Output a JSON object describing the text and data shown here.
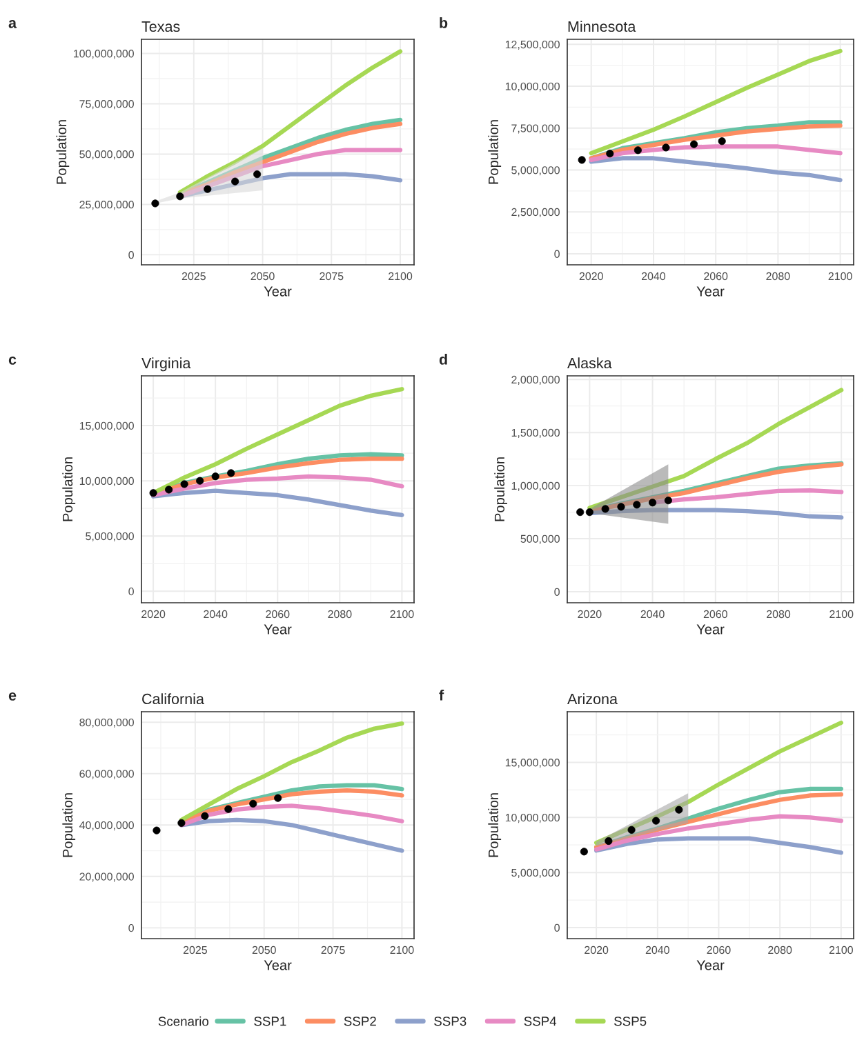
{
  "chart_data": [
    {
      "type": "line",
      "title": "Texas",
      "xlabel": "Year",
      "ylabel": "Population",
      "annotations": [
        "a"
      ],
      "grid": true,
      "legend": "bottom",
      "legend_title": "Scenario",
      "xlim": [
        2006,
        2105
      ],
      "ylim": [
        -5000000,
        107000000
      ],
      "xticks": [
        2025,
        2050,
        2075,
        2100
      ],
      "yticks": [
        {
          "value": 0,
          "label": "0"
        },
        {
          "value": 25000000,
          "label": "25,000,000"
        },
        {
          "value": 50000000,
          "label": "50,000,000"
        },
        {
          "value": 75000000,
          "label": "75,000,000"
        },
        {
          "value": 100000000,
          "label": "100,000,000"
        }
      ],
      "x": [
        2020,
        2030,
        2040,
        2050,
        2060,
        2070,
        2080,
        2090,
        2100
      ],
      "series": [
        {
          "type": "line",
          "color": "#d9d9d9",
          "x": [
            2011,
            2020,
            2050
          ],
          "values": [
            null,
            null,
            null
          ],
          "lower": [
            25500000.0,
            28000000.0,
            32000000.0
          ],
          "upper": [
            26500000.0,
            31000000.0,
            53000000.0
          ]
        },
        {
          "name": "SSP1",
          "color": "#66c2a5",
          "values": [
            30000000.0,
            36000000.0,
            42000000.0,
            48000000.0,
            53000000.0,
            58000000.0,
            62000000.0,
            65000000.0,
            67000000.0
          ]
        },
        {
          "name": "SSP2",
          "color": "#fc8d62",
          "values": [
            30000000.0,
            35000000.0,
            41000000.0,
            46000000.0,
            51000000.0,
            56000000.0,
            60000000.0,
            63000000.0,
            65000000.0
          ]
        },
        {
          "name": "SSP3",
          "color": "#8da0cb",
          "values": [
            29000000.0,
            32000000.0,
            35000000.0,
            38000000.0,
            40000000.0,
            40000000.0,
            40000000.0,
            39000000.0,
            37000000.0
          ]
        },
        {
          "name": "SSP4",
          "color": "#e78ac3",
          "values": [
            29000000.0,
            34000000.0,
            39000000.0,
            44000000.0,
            47000000.0,
            50000000.0,
            52000000.0,
            52000000.0,
            52000000.0
          ]
        },
        {
          "name": "SSP5",
          "color": "#a6d854",
          "values": [
            31000000.0,
            39000000.0,
            46000000.0,
            54000000.0,
            64000000.0,
            74000000.0,
            84000000.0,
            93000000.0,
            101000000.0
          ]
        },
        {
          "type": "scatter",
          "color": "#000000",
          "marker": "circle",
          "x": [
            2011,
            2020,
            2030,
            2040,
            2048
          ],
          "values": [
            25500000.0,
            29000000.0,
            32600000.0,
            36400000.0,
            40000000.0
          ]
        }
      ]
    },
    {
      "type": "line",
      "title": "Minnesota",
      "xlabel": "Year",
      "ylabel": "Population",
      "annotations": [
        "b"
      ],
      "grid": true,
      "xlim": [
        2012.3,
        2104.3
      ],
      "ylim": [
        -660000,
        12800000
      ],
      "xticks": [
        2020,
        2040,
        2060,
        2080,
        2100
      ],
      "yticks": [
        {
          "value": 0,
          "label": "0"
        },
        {
          "value": 2500000,
          "label": "2,500,000"
        },
        {
          "value": 5000000,
          "label": "5,000,000"
        },
        {
          "value": 7500000,
          "label": "7,500,000"
        },
        {
          "value": 10000000,
          "label": "10,000,000"
        },
        {
          "value": 12500000,
          "label": "12,500,000"
        }
      ],
      "x": [
        2020,
        2030,
        2040,
        2050,
        2060,
        2070,
        2080,
        2090,
        2100
      ],
      "series": [
        {
          "name": "SSP1",
          "color": "#66c2a5",
          "values": [
            5700000.0,
            6300000.0,
            6600000.0,
            6900000.0,
            7250000.0,
            7500000.0,
            7650000.0,
            7850000.0,
            7850000.0
          ]
        },
        {
          "name": "SSP2",
          "color": "#fc8d62",
          "values": [
            5700000.0,
            6200000.0,
            6500000.0,
            6800000.0,
            7050000.0,
            7300000.0,
            7450000.0,
            7600000.0,
            7650000.0
          ]
        },
        {
          "name": "SSP3",
          "color": "#8da0cb",
          "values": [
            5500000.0,
            5700000.0,
            5700000.0,
            5500000.0,
            5300000.0,
            5100000.0,
            4850000.0,
            4700000.0,
            4400000.0
          ]
        },
        {
          "name": "SSP4",
          "color": "#e78ac3",
          "values": [
            5600000.0,
            6000000.0,
            6200000.0,
            6350000.0,
            6400000.0,
            6400000.0,
            6400000.0,
            6200000.0,
            6000000.0
          ]
        },
        {
          "name": "SSP5",
          "color": "#a6d854",
          "values": [
            6000000.0,
            6700000.0,
            7400000.0,
            8200000.0,
            9050000.0,
            9900000.0,
            10700000.0,
            11500000.0,
            12100000.0
          ]
        },
        {
          "type": "scatter",
          "color": "#000000",
          "marker": "circle",
          "x": [
            2017,
            2026,
            2035,
            2044,
            2053,
            2062
          ],
          "values": [
            5600000.0,
            5980000.0,
            6180000.0,
            6340000.0,
            6540000.0,
            6720000.0
          ]
        }
      ]
    },
    {
      "type": "line",
      "title": "Virginia",
      "xlabel": "Year",
      "ylabel": "Population",
      "annotations": [
        "c"
      ],
      "grid": true,
      "xlim": [
        2016.2,
        2103.9
      ],
      "ylim": [
        -1040000,
        19500000
      ],
      "xticks": [
        2020,
        2040,
        2060,
        2080,
        2100
      ],
      "yticks": [
        {
          "value": 0,
          "label": "0"
        },
        {
          "value": 5000000,
          "label": "5,000,000"
        },
        {
          "value": 10000000,
          "label": "10,000,000"
        },
        {
          "value": 15000000,
          "label": "15,000,000"
        }
      ],
      "x": [
        2020,
        2030,
        2040,
        2050,
        2060,
        2070,
        2080,
        2090,
        2100
      ],
      "series": [
        {
          "name": "SSP1",
          "color": "#66c2a5",
          "values": [
            8800000.0,
            9800000.0,
            10400000.0,
            10900000.0,
            11500000.0,
            12000000.0,
            12300000.0,
            12400000.0,
            12300000.0
          ]
        },
        {
          "name": "SSP2",
          "color": "#fc8d62",
          "values": [
            8800000.0,
            9700000.0,
            10300000.0,
            10700000.0,
            11200000.0,
            11600000.0,
            11900000.0,
            12000000.0,
            12000000.0
          ]
        },
        {
          "name": "SSP3",
          "color": "#8da0cb",
          "values": [
            8600000.0,
            8900000.0,
            9100000.0,
            8900000.0,
            8700000.0,
            8300000.0,
            7800000.0,
            7300000.0,
            6900000.0
          ]
        },
        {
          "name": "SSP4",
          "color": "#e78ac3",
          "values": [
            8700000.0,
            9300000.0,
            9800000.0,
            10100000.0,
            10200000.0,
            10400000.0,
            10300000.0,
            10100000.0,
            9500000.0
          ]
        },
        {
          "name": "SSP5",
          "color": "#a6d854",
          "values": [
            8900000.0,
            10300000.0,
            11500000.0,
            12900000.0,
            14200000.0,
            15500000.0,
            16800000.0,
            17700000.0,
            18300000.0
          ]
        },
        {
          "type": "scatter",
          "color": "#000000",
          "marker": "circle",
          "x": [
            2020,
            2025,
            2030,
            2035,
            2040,
            2045
          ],
          "values": [
            8900000.0,
            9200000.0,
            9700000.0,
            10000000.0,
            10400000.0,
            10700000.0
          ]
        }
      ]
    },
    {
      "type": "line",
      "title": "Alaska",
      "xlabel": "Year",
      "ylabel": "Population",
      "annotations": [
        "d"
      ],
      "grid": true,
      "xlim": [
        2012.9,
        2103.9
      ],
      "ylim": [
        -104000,
        2034000
      ],
      "xticks": [
        2020,
        2040,
        2060,
        2080,
        2100
      ],
      "yticks": [
        {
          "value": 0,
          "label": "0"
        },
        {
          "value": 500000,
          "label": "500,000"
        },
        {
          "value": 1000000,
          "label": "1,000,000"
        },
        {
          "value": 1500000,
          "label": "1,500,000"
        },
        {
          "value": 2000000,
          "label": "2,000,000"
        }
      ],
      "x": [
        2020,
        2030,
        2040,
        2050,
        2060,
        2070,
        2080,
        2090,
        2100
      ],
      "series": [
        {
          "name": "SSP1",
          "color": "#66c2a5",
          "values": [
            760000,
            830000,
            890000,
            950000,
            1020000,
            1090000,
            1160000,
            1190000,
            1210000
          ]
        },
        {
          "name": "SSP2",
          "color": "#fc8d62",
          "values": [
            760000,
            820000,
            880000,
            930000,
            1000000,
            1070000,
            1130000,
            1170000,
            1200000
          ]
        },
        {
          "name": "SSP3",
          "color": "#8da0cb",
          "values": [
            740000,
            760000,
            770000,
            770000,
            770000,
            760000,
            740000,
            710000,
            700000
          ]
        },
        {
          "name": "SSP4",
          "color": "#e78ac3",
          "values": [
            null,
            null,
            840000,
            870000,
            890000,
            920000,
            950000,
            955000,
            940000
          ]
        },
        {
          "name": "SSP5",
          "color": "#a6d854",
          "values": [
            790000,
            890000,
            990000,
            1090000,
            1250000,
            1400000,
            1580000,
            1740000,
            1900000
          ]
        },
        {
          "type": "line",
          "color": "#8c8c8c",
          "x": [
            2020,
            2045
          ],
          "values": [
            null,
            null
          ],
          "lower": [
            740000,
            640000
          ],
          "upper": [
            780000,
            1200000
          ]
        },
        {
          "type": "scatter",
          "color": "#000000",
          "marker": "circle",
          "x": [
            2017,
            2020,
            2025,
            2030,
            2035,
            2040,
            2045
          ],
          "values": [
            750000,
            750000,
            780000,
            800000,
            820000,
            840000,
            860000
          ]
        }
      ]
    },
    {
      "type": "line",
      "title": "California",
      "xlabel": "Year",
      "ylabel": "Population",
      "annotations": [
        "e"
      ],
      "grid": true,
      "xlim": [
        2005.5,
        2104.4
      ],
      "ylim": [
        -4200000,
        84100000
      ],
      "xticks": [
        2025,
        2050,
        2075,
        2100
      ],
      "yticks": [
        {
          "value": 0,
          "label": "0"
        },
        {
          "value": 20000000,
          "label": "20,000,000"
        },
        {
          "value": 40000000,
          "label": "40,000,000"
        },
        {
          "value": 60000000,
          "label": "60,000,000"
        },
        {
          "value": 80000000,
          "label": "80,000,000"
        }
      ],
      "x": [
        2020,
        2030,
        2040,
        2050,
        2060,
        2070,
        2080,
        2090,
        2100
      ],
      "series": [
        {
          "name": "SSP1",
          "color": "#66c2a5",
          "values": [
            41000000.0,
            46000000.0,
            48500000.0,
            51000000.0,
            53500000.0,
            55000000.0,
            55500000.0,
            55500000.0,
            54000000.0
          ]
        },
        {
          "name": "SSP2",
          "color": "#fc8d62",
          "values": [
            41000000.0,
            45500000.0,
            48000000.0,
            50000000.0,
            52000000.0,
            53000000.0,
            53500000.0,
            53000000.0,
            51500000.0
          ]
        },
        {
          "name": "SSP3",
          "color": "#8da0cb",
          "values": [
            40000000.0,
            41500000.0,
            42000000.0,
            41500000.0,
            40000000.0,
            37500000.0,
            35000000.0,
            32500000.0,
            30000000.0
          ]
        },
        {
          "name": "SSP4",
          "color": "#e78ac3",
          "values": [
            40000000.0,
            44000000.0,
            46000000.0,
            47000000.0,
            47500000.0,
            46500000.0,
            45000000.0,
            43500000.0,
            41500000.0
          ]
        },
        {
          "name": "SSP5",
          "color": "#a6d854",
          "values": [
            42000000.0,
            48000000.0,
            54000000.0,
            59000000.0,
            64500000.0,
            69000000.0,
            74000000.0,
            77500000.0,
            79500000.0
          ]
        },
        {
          "type": "scatter",
          "color": "#000000",
          "marker": "circle",
          "x": [
            2011,
            2020,
            2028.5,
            2037,
            2046,
            2055
          ],
          "values": [
            37900000.0,
            40800000.0,
            43500000.0,
            46200000.0,
            48300000.0,
            50500000.0
          ]
        }
      ]
    },
    {
      "type": "line",
      "title": "Arizona",
      "xlabel": "Year",
      "ylabel": "Population",
      "annotations": [
        "f"
      ],
      "grid": true,
      "xlim": [
        2010.5,
        2104.1
      ],
      "ylim": [
        -1000000,
        19600000
      ],
      "xticks": [
        2020,
        2040,
        2060,
        2080,
        2100
      ],
      "yticks": [
        {
          "value": 0,
          "label": "0"
        },
        {
          "value": 5000000,
          "label": "5,000,000"
        },
        {
          "value": 10000000,
          "label": "10,000,000"
        },
        {
          "value": 15000000,
          "label": "15,000,000"
        }
      ],
      "x": [
        2020,
        2030,
        2040,
        2050,
        2060,
        2070,
        2080,
        2090,
        2100
      ],
      "series": [
        {
          "name": "SSP1",
          "color": "#66c2a5",
          "values": [
            7300000.0,
            8200000.0,
            9000000.0,
            9900000.0,
            10800000.0,
            11600000.0,
            12300000.0,
            12600000.0,
            12600000.0
          ]
        },
        {
          "name": "SSP2",
          "color": "#fc8d62",
          "values": [
            7300000.0,
            8100000.0,
            8900000.0,
            9600000.0,
            10300000.0,
            11000000.0,
            11600000.0,
            12000000.0,
            12100000.0
          ]
        },
        {
          "name": "SSP3",
          "color": "#8da0cb",
          "values": [
            7000000.0,
            7600000.0,
            8000000.0,
            8100000.0,
            8100000.0,
            8100000.0,
            7700000.0,
            7300000.0,
            6800000.0
          ]
        },
        {
          "name": "SSP4",
          "color": "#e78ac3",
          "values": [
            7100000.0,
            7900000.0,
            8500000.0,
            9000000.0,
            9400000.0,
            9800000.0,
            10100000.0,
            10000000.0,
            9700000.0
          ]
        },
        {
          "name": "SSP5",
          "color": "#a6d854",
          "values": [
            7700000.0,
            8900000.0,
            10100000.0,
            11400000.0,
            13000000.0,
            14500000.0,
            16000000.0,
            17300000.0,
            18600000.0
          ]
        },
        {
          "type": "line",
          "color": "#a6a6a6",
          "x": [
            2020,
            2050
          ],
          "values": [
            null,
            null
          ],
          "lower": [
            7400000.0,
            9500000.0
          ],
          "upper": [
            7800000.0,
            12200000.0
          ]
        },
        {
          "type": "scatter",
          "color": "#000000",
          "marker": "circle",
          "x": [
            2016,
            2024,
            2031.5,
            2039.5,
            2047
          ],
          "values": [
            6900000.0,
            7860000.0,
            8870000.0,
            9700000.0,
            10700000.0
          ]
        }
      ]
    }
  ]
}
